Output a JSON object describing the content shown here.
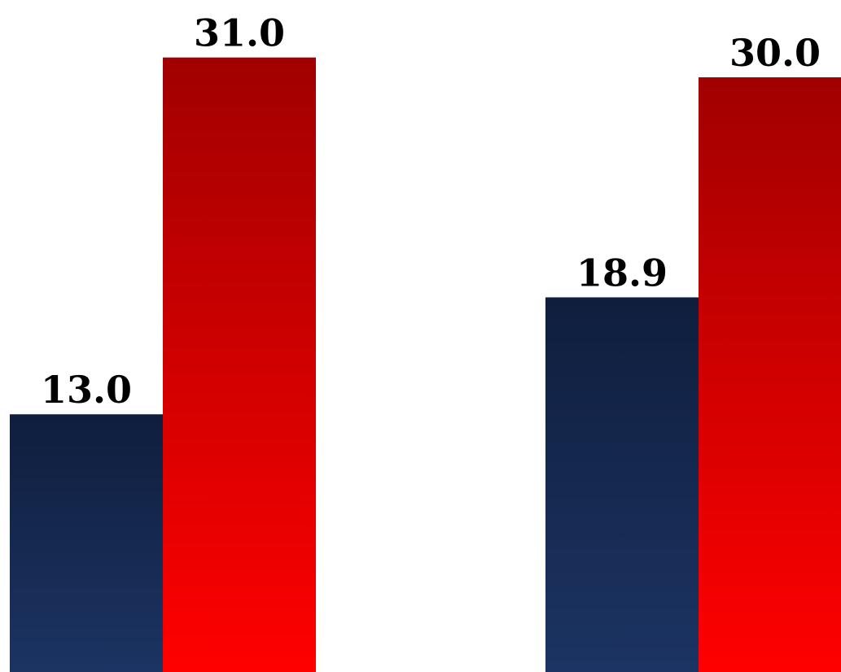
{
  "chart_data": {
    "type": "bar",
    "categories": [
      "",
      ""
    ],
    "series": [
      {
        "values": [
          13.0,
          18.9
        ],
        "color_top": "#0f1e3d",
        "color_bottom": "#1c3463"
      },
      {
        "values": [
          31.0,
          30.0
        ],
        "color_top": "#a10000",
        "color_bottom": "#ff0000"
      }
    ],
    "data_labels": [
      [
        "13.0",
        "18.9"
      ],
      [
        "31.0",
        "30.0"
      ]
    ],
    "ylim": [
      0,
      33.9
    ],
    "grid": false,
    "legend": "none",
    "title": "",
    "xlabel": "",
    "ylabel": ""
  }
}
